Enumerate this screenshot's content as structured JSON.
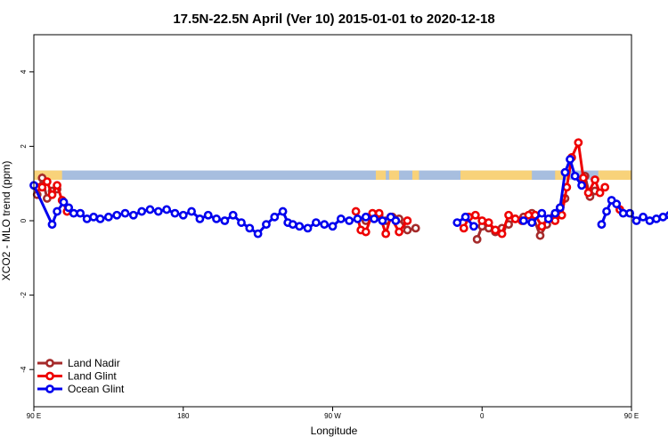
{
  "chart_data": {
    "type": "line",
    "title": "17.5N-22.5N April (Ver 10)   2015-01-01 to 2020-12-18",
    "xlabel": "Longitude",
    "ylabel": "XCO2 - MLO trend (ppm)",
    "xlim": [
      90,
      450
    ],
    "ylim": [
      -5,
      5
    ],
    "x_ticks": [
      {
        "value": 90,
        "label": "90 E"
      },
      {
        "value": 180,
        "label": "180"
      },
      {
        "value": 270,
        "label": "90 W"
      },
      {
        "value": 360,
        "label": "0"
      },
      {
        "value": 450,
        "label": "90 E"
      },
      {
        "value": 540,
        "label": "180"
      }
    ],
    "y_ticks": [
      {
        "value": -4,
        "label": "-4"
      },
      {
        "value": -2,
        "label": "-2"
      },
      {
        "value": 0,
        "label": "0"
      },
      {
        "value": 2,
        "label": "2"
      },
      {
        "value": 4,
        "label": "4"
      }
    ],
    "grid": false,
    "legend_position": "bottom-left",
    "land_strip": {
      "y_range": [
        1.1,
        1.35
      ],
      "ocean_color": "#a7bedf",
      "land_color": "#f8d27a",
      "land_segments": [
        [
          90,
          107
        ],
        [
          296,
          302
        ],
        [
          304,
          310
        ],
        [
          318,
          322
        ],
        [
          347,
          390
        ],
        [
          404,
          412
        ],
        [
          430,
          452
        ],
        [
          452,
          465
        ]
      ]
    },
    "series": [
      {
        "name": "Land Nadir",
        "color": "#a52a2a",
        "segments": [
          [
            [
              92,
              0.7
            ],
            [
              95,
              1.15
            ],
            [
              98,
              0.6
            ],
            [
              101,
              0.8
            ],
            [
              104,
              0.85
            ]
          ],
          [
            [
              290,
              0.0
            ],
            [
              295,
              0.1
            ],
            [
              298,
              0.15
            ],
            [
              302,
              0.0
            ],
            [
              306,
              0.1
            ],
            [
              310,
              0.05
            ],
            [
              315,
              -0.25
            ],
            [
              320,
              -0.2
            ]
          ],
          [
            [
              357,
              -0.5
            ],
            [
              360,
              -0.15
            ],
            [
              364,
              -0.2
            ],
            [
              368,
              -0.3
            ],
            [
              372,
              -0.2
            ],
            [
              376,
              -0.1
            ],
            [
              380,
              0.05
            ],
            [
              385,
              0.1
            ],
            [
              390,
              0.2
            ],
            [
              395,
              -0.4
            ],
            [
              399,
              -0.1
            ],
            [
              403,
              0.1
            ],
            [
              407,
              0.35
            ],
            [
              410,
              0.6
            ]
          ],
          [
            [
              422,
              1.2
            ],
            [
              425,
              0.65
            ],
            [
              428,
              0.8
            ]
          ]
        ]
      },
      {
        "name": "Land Glint",
        "color": "#ee0000",
        "segments": [
          [
            [
              92,
              0.9
            ],
            [
              95,
              0.9
            ],
            [
              98,
              1.05
            ],
            [
              101,
              0.7
            ],
            [
              104,
              0.95
            ],
            [
              107,
              0.55
            ],
            [
              110,
              0.25
            ]
          ],
          [
            [
              284,
              0.25
            ],
            [
              287,
              -0.25
            ],
            [
              290,
              -0.3
            ],
            [
              294,
              0.2
            ],
            [
              298,
              0.2
            ],
            [
              302,
              -0.35
            ],
            [
              305,
              0.1
            ],
            [
              310,
              -0.3
            ],
            [
              315,
              0.0
            ]
          ],
          [
            [
              349,
              -0.2
            ],
            [
              352,
              0.1
            ],
            [
              356,
              0.15
            ],
            [
              360,
              0.0
            ],
            [
              364,
              -0.05
            ],
            [
              368,
              -0.25
            ],
            [
              372,
              -0.35
            ],
            [
              376,
              0.15
            ],
            [
              380,
              0.05
            ],
            [
              384,
              0.0
            ],
            [
              388,
              0.15
            ],
            [
              392,
              0.15
            ],
            [
              396,
              -0.15
            ],
            [
              400,
              0.05
            ],
            [
              404,
              0.0
            ],
            [
              408,
              0.15
            ],
            [
              411,
              0.9
            ],
            [
              414,
              1.7
            ],
            [
              418,
              2.1
            ],
            [
              421,
              1.15
            ],
            [
              424,
              0.75
            ],
            [
              428,
              1.1
            ],
            [
              431,
              0.75
            ],
            [
              434,
              0.9
            ]
          ],
          [
            [
              443,
              0.3
            ]
          ]
        ]
      },
      {
        "name": "Ocean Glint",
        "color": "#0000ee",
        "segments": [
          [
            [
              90,
              0.95
            ],
            [
              101,
              -0.1
            ],
            [
              104,
              0.25
            ],
            [
              108,
              0.5
            ],
            [
              111,
              0.35
            ],
            [
              114,
              0.2
            ],
            [
              118,
              0.2
            ],
            [
              122,
              0.05
            ],
            [
              126,
              0.1
            ],
            [
              130,
              0.05
            ],
            [
              135,
              0.1
            ],
            [
              140,
              0.15
            ],
            [
              145,
              0.2
            ],
            [
              150,
              0.15
            ],
            [
              155,
              0.25
            ],
            [
              160,
              0.3
            ],
            [
              165,
              0.25
            ],
            [
              170,
              0.3
            ],
            [
              175,
              0.2
            ],
            [
              180,
              0.15
            ],
            [
              185,
              0.25
            ],
            [
              190,
              0.05
            ],
            [
              195,
              0.15
            ],
            [
              200,
              0.05
            ],
            [
              205,
              0.0
            ],
            [
              210,
              0.15
            ],
            [
              215,
              -0.05
            ],
            [
              220,
              -0.2
            ],
            [
              225,
              -0.35
            ],
            [
              230,
              -0.1
            ],
            [
              235,
              0.1
            ],
            [
              240,
              0.25
            ],
            [
              243,
              -0.05
            ],
            [
              246,
              -0.1
            ],
            [
              250,
              -0.15
            ],
            [
              255,
              -0.2
            ],
            [
              260,
              -0.05
            ],
            [
              265,
              -0.1
            ],
            [
              270,
              -0.15
            ],
            [
              275,
              0.05
            ],
            [
              280,
              0.0
            ],
            [
              285,
              0.05
            ],
            [
              290,
              0.1
            ],
            [
              295,
              0.05
            ],
            [
              300,
              0.0
            ],
            [
              305,
              0.1
            ],
            [
              308,
              0.0
            ]
          ],
          [
            [
              345,
              -0.05
            ],
            [
              350,
              0.1
            ],
            [
              355,
              -0.15
            ]
          ],
          [
            [
              385,
              0.0
            ],
            [
              390,
              -0.05
            ],
            [
              396,
              0.2
            ],
            [
              400,
              0.05
            ],
            [
              404,
              0.2
            ],
            [
              407,
              0.35
            ],
            [
              410,
              1.3
            ],
            [
              413,
              1.65
            ],
            [
              416,
              1.2
            ],
            [
              420,
              0.95
            ]
          ],
          [
            [
              432,
              -0.1
            ],
            [
              435,
              0.25
            ],
            [
              438,
              0.55
            ],
            [
              441,
              0.45
            ],
            [
              445,
              0.2
            ],
            [
              449,
              0.2
            ],
            [
              453,
              0.0
            ],
            [
              457,
              0.1
            ],
            [
              461,
              0.0
            ],
            [
              465,
              0.05
            ],
            [
              469,
              0.1
            ],
            [
              473,
              0.15
            ],
            [
              477,
              0.2
            ],
            [
              481,
              0.2
            ],
            [
              485,
              0.25
            ]
          ]
        ]
      }
    ]
  }
}
